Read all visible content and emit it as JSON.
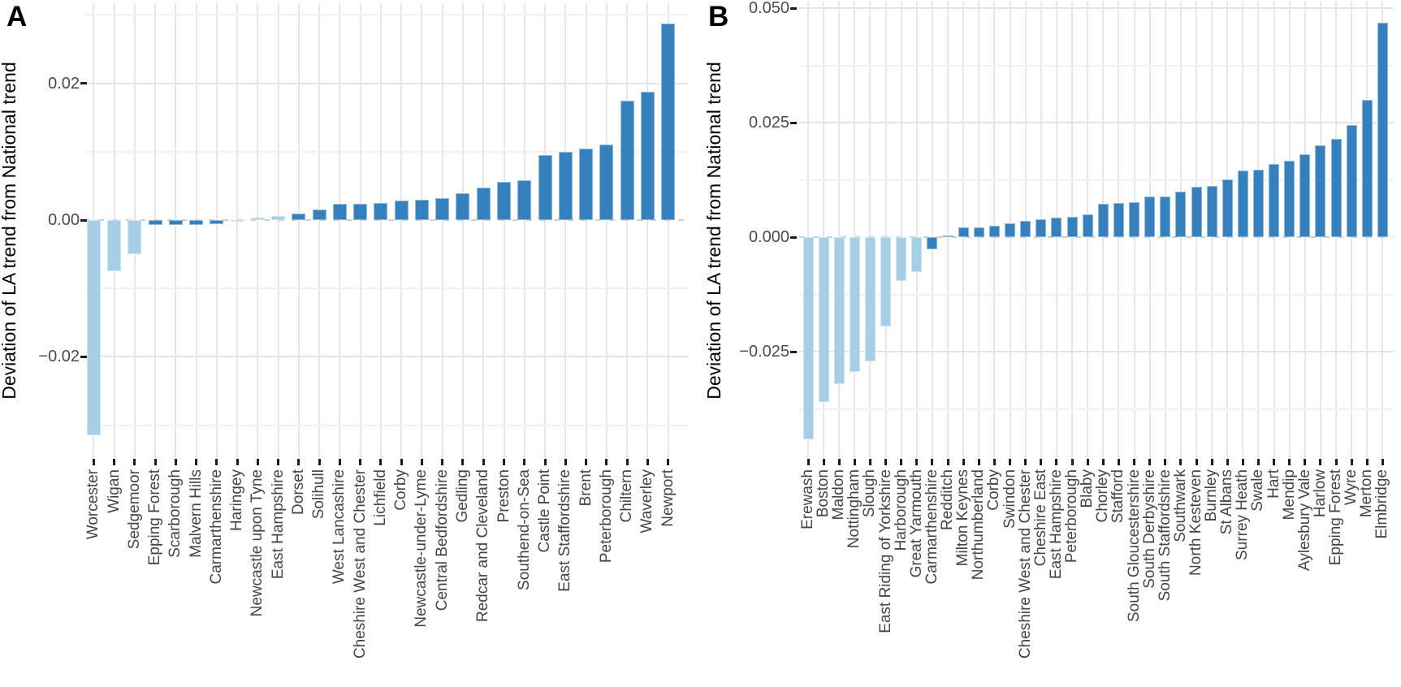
{
  "figure": {
    "panels": [
      {
        "letter": "A",
        "y_axis_title": "Deviation of LA trend from National trend"
      },
      {
        "letter": "B",
        "y_axis_title": "Deviation of LA trend from National trend"
      }
    ]
  },
  "colors": {
    "bar_dark": "#3580bd",
    "bar_light": "#a7cee4",
    "grid_major": "#e4e4e4",
    "grid_minor": "#f1f1f1",
    "grid_vertical": "#e7e7e7",
    "zero_dash": "#cecece",
    "axis_text": "#4b4b4b",
    "tick_mark": "#1d1d1d",
    "title_text": "#000000"
  },
  "chart_data": [
    {
      "panel": "A",
      "type": "bar",
      "title": "",
      "xlabel": "",
      "ylabel": "Deviation of LA trend from National trend",
      "ylim": [
        -0.0348,
        0.0317
      ],
      "grid": true,
      "legend": false,
      "yticks": [
        {
          "label": "0.02",
          "value": 0.02
        },
        {
          "label": "0.00",
          "value": 0.0
        },
        {
          "label": "−0.02",
          "value": -0.02
        }
      ],
      "minor_gridlines": [
        0.03,
        0.01,
        -0.01,
        -0.03
      ],
      "categories": [
        "Worcester",
        "Wigan",
        "Sedgemoor",
        "Epping Forest",
        "Scarborough",
        "Malvern Hills",
        "Carmarthenshire",
        "Haringey",
        "Newcastle upon Tyne",
        "East Hampshire",
        "Dorset",
        "Solihull",
        "West Lancashire",
        "Cheshire West and Chester",
        "Lichfield",
        "Corby",
        "Newcastle-under-Lyme",
        "Central Bedfordshire",
        "Gedling",
        "Redcar and Cleveland",
        "Preston",
        "Southend-on-Sea",
        "Castle Point",
        "East Staffordshire",
        "Brent",
        "Peterborough",
        "Chiltern",
        "Waverley",
        "Newport"
      ],
      "values": [
        -0.0315,
        -0.0075,
        -0.005,
        -0.0007,
        -0.0007,
        -0.0007,
        -0.0006,
        -0.0001,
        0.0004,
        0.0006,
        0.001,
        0.0016,
        0.0024,
        0.0024,
        0.0025,
        0.0028,
        0.003,
        0.0032,
        0.0039,
        0.0048,
        0.0056,
        0.0058,
        0.0095,
        0.01,
        0.0105,
        0.011,
        0.0175,
        0.0188,
        0.0287
      ],
      "shades": [
        "light",
        "light",
        "light",
        "dark",
        "dark",
        "dark",
        "dark",
        "light",
        "light",
        "light",
        "dark",
        "dark",
        "dark",
        "dark",
        "dark",
        "dark",
        "dark",
        "dark",
        "dark",
        "dark",
        "dark",
        "dark",
        "dark",
        "dark",
        "dark",
        "dark",
        "dark",
        "dark",
        "dark"
      ]
    },
    {
      "panel": "B",
      "type": "bar",
      "title": "",
      "xlabel": "",
      "ylabel": "Deviation of LA trend from National trend",
      "ylim": [
        -0.0488,
        0.0514
      ],
      "grid": true,
      "legend": false,
      "yticks": [
        {
          "label": "0.050",
          "value": 0.05
        },
        {
          "label": "0.025",
          "value": 0.025
        },
        {
          "label": "0.000",
          "value": 0.0
        },
        {
          "label": "−0.025",
          "value": -0.025
        }
      ],
      "minor_gridlines": [
        0.0375,
        0.0125,
        -0.0125,
        -0.0375
      ],
      "categories": [
        "Erewash",
        "Boston",
        "Maldon",
        "Nottingham",
        "Slough",
        "East Riding of Yorkshire",
        "Harborough",
        "Great Yarmouth",
        "Carmarthenshire",
        "Redditch",
        "Milton Keynes",
        "Northumberland",
        "Corby",
        "Swindon",
        "Cheshire West and Chester",
        "Cheshire East",
        "East Hampshire",
        "Peterborough",
        "Blaby",
        "Chorley",
        "Stafford",
        "South Gloucestershire",
        "South Derbyshire",
        "South Staffordshire",
        "Southwark",
        "North Kesteven",
        "Burnley",
        "St Albans",
        "Surrey Heath",
        "Swale",
        "Hart",
        "Mendip",
        "Aylesbury Vale",
        "Harlow",
        "Epping Forest",
        "Wyre",
        "Merton",
        "Elmbridge"
      ],
      "values": [
        -0.0442,
        -0.036,
        -0.0321,
        -0.0294,
        -0.0271,
        -0.0195,
        -0.0095,
        -0.0076,
        -0.0027,
        0.0003,
        0.0021,
        0.0021,
        0.0024,
        0.003,
        0.0035,
        0.0039,
        0.0042,
        0.0045,
        0.0049,
        0.0072,
        0.0075,
        0.0077,
        0.0088,
        0.0089,
        0.0099,
        0.011,
        0.0111,
        0.0126,
        0.0145,
        0.0147,
        0.0159,
        0.0166,
        0.018,
        0.02,
        0.0214,
        0.0245,
        0.03,
        0.0468
      ],
      "shades": [
        "light",
        "light",
        "light",
        "light",
        "light",
        "light",
        "light",
        "light",
        "dark",
        "dark",
        "dark",
        "dark",
        "dark",
        "dark",
        "dark",
        "dark",
        "dark",
        "dark",
        "dark",
        "dark",
        "dark",
        "dark",
        "dark",
        "dark",
        "dark",
        "dark",
        "dark",
        "dark",
        "dark",
        "dark",
        "dark",
        "dark",
        "dark",
        "dark",
        "dark",
        "dark",
        "dark",
        "dark"
      ]
    }
  ]
}
